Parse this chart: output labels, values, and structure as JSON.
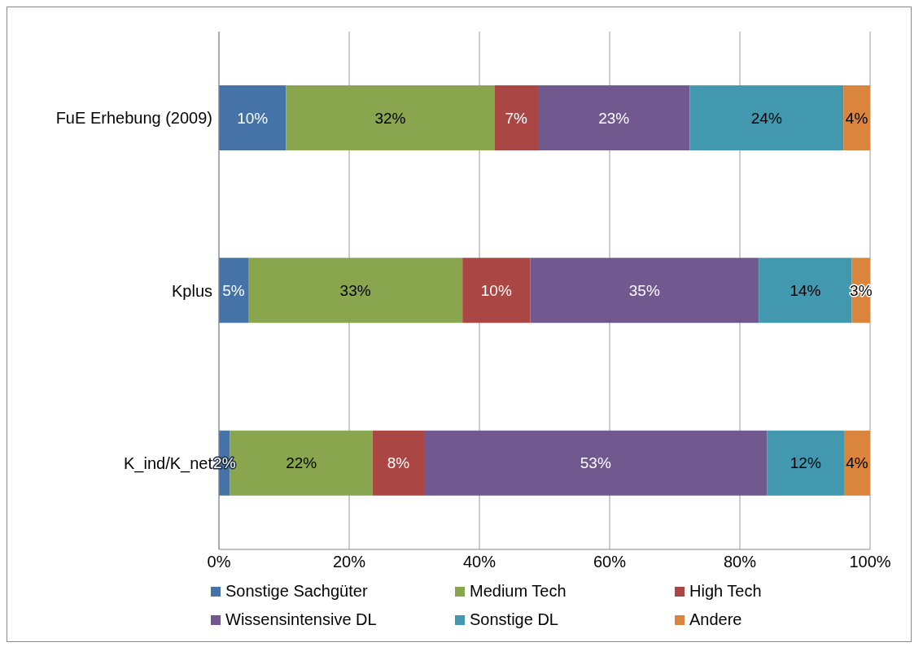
{
  "chart_data": {
    "type": "bar",
    "orientation": "horizontal",
    "stacked": true,
    "categories": [
      "FuE Erhebung (2009)",
      "Kplus",
      "K_ind/K_net"
    ],
    "series": [
      {
        "name": "Sonstige Sachgüter",
        "color": "#4572a7",
        "values": [
          10.3,
          4.5,
          1.7
        ],
        "value_labels": [
          "10%",
          "5%",
          "2%"
        ]
      },
      {
        "name": "Medium Tech",
        "color": "#89a54e",
        "values": [
          32.0,
          32.9,
          21.9
        ],
        "value_labels": [
          "32%",
          "33%",
          "22%"
        ]
      },
      {
        "name": "High Tech",
        "color": "#aa4643",
        "values": [
          6.7,
          10.4,
          7.9
        ],
        "value_labels": [
          "7%",
          "10%",
          "8%"
        ]
      },
      {
        "name": "Wissensintensive DL",
        "color": "#71588f",
        "values": [
          23.3,
          35.1,
          52.7
        ],
        "value_labels": [
          "23%",
          "35%",
          "53%"
        ]
      },
      {
        "name": "Sonstige DL",
        "color": "#4198af",
        "values": [
          23.6,
          14.3,
          11.8
        ],
        "value_labels": [
          "24%",
          "14%",
          "12%"
        ]
      },
      {
        "name": "Andere",
        "color": "#db843d",
        "values": [
          4.1,
          2.8,
          4.0
        ],
        "value_labels": [
          "4%",
          "3%",
          "4%"
        ]
      }
    ],
    "xlim": [
      0,
      100
    ],
    "xticks": [
      {
        "value": 0,
        "label": "0%"
      },
      {
        "value": 20,
        "label": "20%"
      },
      {
        "value": 40,
        "label": "40%"
      },
      {
        "value": 60,
        "label": "60%"
      },
      {
        "value": 80,
        "label": "80%"
      },
      {
        "value": 100,
        "label": "100%"
      }
    ],
    "grid": "x",
    "legend": "bottom"
  }
}
